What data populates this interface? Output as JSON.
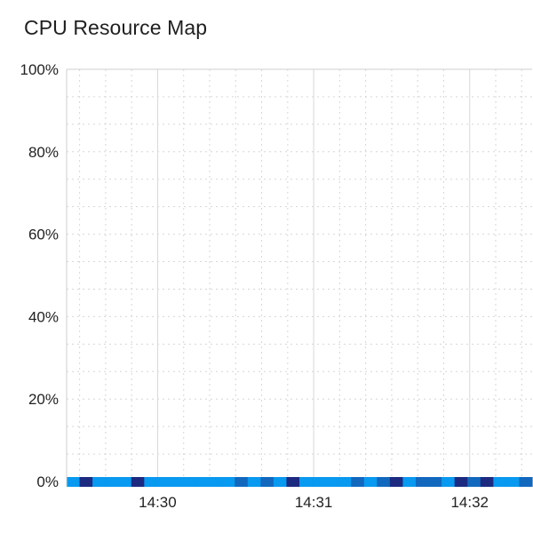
{
  "chart_data": {
    "type": "heatmap",
    "title": "CPU Resource Map",
    "xlabel": "",
    "ylabel": "",
    "y_ticks": [
      "0%",
      "20%",
      "40%",
      "60%",
      "80%",
      "100%"
    ],
    "y_range": [
      0,
      100
    ],
    "x_ticks": [
      "14:30",
      "14:31",
      "14:32"
    ],
    "x_range_seconds": [
      -35,
      144
    ],
    "grid": true,
    "legend": "none",
    "cell_seconds": 5,
    "cells": [
      1,
      1,
      2,
      1,
      1,
      1,
      1,
      2,
      1,
      1,
      1,
      1,
      1,
      1,
      1,
      1,
      1,
      1,
      1,
      1,
      1,
      1,
      1,
      1,
      1,
      1,
      1,
      1,
      1,
      1,
      1,
      1,
      1,
      1,
      1,
      1,
      1,
      1,
      1,
      1,
      1,
      1,
      1,
      1,
      1,
      1,
      1,
      1,
      1,
      1,
      1,
      1,
      1,
      1,
      1,
      1,
      1,
      1,
      1,
      1,
      1,
      1,
      1,
      1,
      1,
      1,
      1,
      1,
      1,
      1,
      1,
      1,
      1,
      1,
      1,
      1,
      1,
      1,
      1,
      1,
      1,
      1,
      1,
      1,
      1,
      1,
      1,
      1,
      1,
      1,
      1,
      1,
      1,
      1,
      1,
      1,
      1,
      1,
      1,
      1,
      1,
      1,
      1,
      1,
      1,
      1,
      1,
      1,
      1,
      1,
      1,
      1,
      1,
      1,
      1,
      1,
      1,
      1,
      1,
      1,
      1,
      1,
      1,
      1,
      1,
      1,
      1,
      1,
      1,
      1,
      1,
      1,
      1,
      1,
      1,
      1,
      1,
      1,
      1,
      1,
      1,
      1,
      1,
      1
    ],
    "cell_levels": [
      1,
      2,
      1,
      1,
      1,
      2,
      1,
      1,
      1,
      1,
      1,
      1,
      1,
      3,
      1,
      3,
      1,
      2,
      1,
      1,
      1,
      1,
      3,
      1,
      3,
      2,
      1,
      3,
      3,
      1,
      2,
      3,
      2,
      1,
      1,
      3
    ],
    "colors": {
      "level_1": "#0899f0",
      "level_2": "#1c2a80",
      "level_3": "#1268bd",
      "grid_major": "#d9d9d9",
      "grid_minor": "#d6d6d6",
      "axis": "#cfcfcf"
    }
  }
}
